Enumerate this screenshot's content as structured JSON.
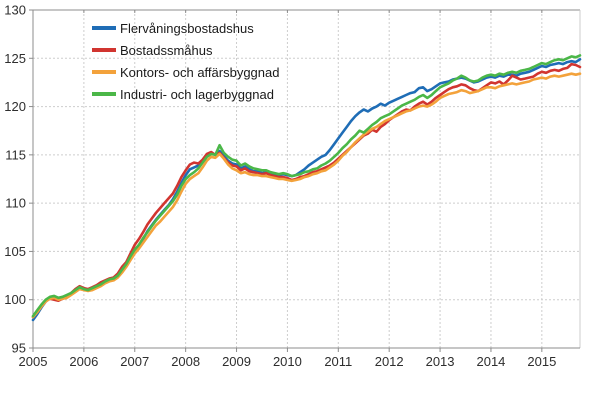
{
  "chart_data": {
    "type": "line",
    "title": "",
    "xlabel": "",
    "ylabel": "",
    "x_unit": "month",
    "x_start": "2005-01",
    "x_end": "2015-10",
    "x_tick_labels": [
      "2005",
      "2006",
      "2007",
      "2008",
      "2009",
      "2010",
      "2011",
      "2012",
      "2013",
      "2014",
      "2015"
    ],
    "y_tick_labels": [
      "95",
      "100",
      "105",
      "110",
      "115",
      "120",
      "125",
      "130"
    ],
    "y_ticks": [
      95,
      100,
      105,
      110,
      115,
      120,
      125,
      130
    ],
    "ylim": [
      95,
      130
    ],
    "grid": true,
    "legend_position": "top-left-inside",
    "axis_color": "#8c8c8c",
    "grid_color": "#cdcdcd",
    "text_color": "#2e2e2e",
    "series": [
      {
        "name": "Flervåningsbostadshus",
        "color": "#1f6db6",
        "values": [
          97.9,
          98.5,
          99.2,
          99.8,
          100.2,
          100.3,
          100.1,
          100.2,
          100.3,
          100.6,
          101.0,
          101.3,
          101.1,
          101.0,
          101.1,
          101.3,
          101.5,
          101.8,
          102.0,
          102.1,
          102.4,
          103.0,
          103.6,
          104.4,
          105.1,
          105.6,
          106.3,
          107.1,
          107.7,
          108.3,
          108.8,
          109.3,
          109.8,
          110.4,
          111.2,
          112.1,
          112.9,
          113.5,
          113.7,
          113.9,
          114.4,
          115.0,
          115.2,
          115.0,
          115.4,
          114.9,
          114.4,
          114.1,
          114.0,
          113.6,
          113.8,
          113.5,
          113.3,
          113.3,
          113.1,
          113.2,
          113.0,
          113.0,
          112.9,
          113.0,
          112.9,
          112.8,
          112.9,
          113.2,
          113.5,
          113.9,
          114.2,
          114.5,
          114.8,
          115.0,
          115.5,
          116.1,
          116.7,
          117.3,
          117.9,
          118.5,
          119.0,
          119.4,
          119.7,
          119.5,
          119.8,
          120.0,
          120.3,
          120.1,
          120.4,
          120.6,
          120.8,
          121.0,
          121.2,
          121.4,
          121.5,
          121.9,
          122.0,
          121.6,
          121.8,
          122.1,
          122.4,
          122.5,
          122.6,
          122.8,
          122.9,
          123.0,
          122.9,
          122.7,
          122.5,
          122.6,
          122.8,
          123.0,
          123.1,
          123.0,
          123.2,
          123.1,
          123.3,
          123.3,
          123.2,
          123.4,
          123.5,
          123.6,
          123.8,
          124.0,
          124.2,
          124.1,
          124.3,
          124.4,
          124.5,
          124.4,
          124.6,
          124.7,
          124.6,
          124.9
        ]
      },
      {
        "name": "Bostadssmåhus",
        "color": "#d13530",
        "values": [
          98.2,
          98.8,
          99.4,
          99.9,
          100.1,
          100.0,
          99.9,
          100.1,
          100.3,
          100.7,
          101.1,
          101.4,
          101.2,
          101.1,
          101.3,
          101.5,
          101.8,
          102.0,
          102.2,
          102.3,
          102.7,
          103.4,
          103.9,
          104.8,
          105.7,
          106.3,
          107.0,
          107.8,
          108.4,
          109.0,
          109.5,
          110.0,
          110.5,
          111.0,
          111.8,
          112.7,
          113.4,
          114.0,
          114.2,
          114.1,
          114.5,
          115.1,
          115.3,
          115.0,
          115.2,
          114.7,
          114.2,
          113.9,
          113.8,
          113.4,
          113.6,
          113.3,
          113.2,
          113.1,
          113.0,
          113.1,
          112.9,
          112.8,
          112.7,
          112.7,
          112.6,
          112.4,
          112.5,
          112.7,
          112.8,
          113.0,
          113.2,
          113.3,
          113.5,
          113.7,
          113.9,
          114.2,
          114.6,
          115.0,
          115.4,
          115.8,
          116.2,
          116.6,
          117.0,
          117.2,
          117.6,
          117.4,
          117.9,
          118.2,
          118.6,
          118.9,
          119.2,
          119.5,
          119.7,
          119.6,
          120.0,
          120.3,
          120.5,
          120.2,
          120.5,
          120.9,
          121.2,
          121.5,
          121.8,
          122.0,
          122.1,
          122.3,
          122.2,
          121.9,
          121.7,
          121.6,
          121.9,
          122.2,
          122.5,
          122.4,
          122.6,
          122.3,
          122.7,
          123.2,
          123.0,
          122.8,
          122.9,
          123.0,
          123.1,
          123.4,
          123.6,
          123.5,
          123.7,
          123.8,
          123.7,
          123.9,
          124.0,
          124.4,
          124.3,
          124.1
        ]
      },
      {
        "name": "Kontors- och affärsbyggnad",
        "color": "#f3a23b",
        "values": [
          98.2,
          98.7,
          99.3,
          99.8,
          100.1,
          100.2,
          100.0,
          100.1,
          100.2,
          100.5,
          100.8,
          101.1,
          101.0,
          100.9,
          101.0,
          101.2,
          101.4,
          101.7,
          101.9,
          102.0,
          102.3,
          102.8,
          103.4,
          104.1,
          104.8,
          105.3,
          105.9,
          106.5,
          107.1,
          107.7,
          108.1,
          108.6,
          109.1,
          109.6,
          110.3,
          111.2,
          112.0,
          112.5,
          112.8,
          113.1,
          113.7,
          114.4,
          114.8,
          114.7,
          115.1,
          114.6,
          114.0,
          113.6,
          113.4,
          113.1,
          113.2,
          113.0,
          112.9,
          112.9,
          112.8,
          112.8,
          112.7,
          112.6,
          112.5,
          112.5,
          112.4,
          112.3,
          112.4,
          112.5,
          112.7,
          112.8,
          113.0,
          113.1,
          113.3,
          113.4,
          113.7,
          114.0,
          114.4,
          114.9,
          115.3,
          115.8,
          116.3,
          116.7,
          117.1,
          117.4,
          117.7,
          117.9,
          118.2,
          118.5,
          118.7,
          118.9,
          119.1,
          119.3,
          119.5,
          119.6,
          119.8,
          120.0,
          120.1,
          120.0,
          120.2,
          120.5,
          120.9,
          121.1,
          121.3,
          121.4,
          121.5,
          121.7,
          121.6,
          121.4,
          121.5,
          121.6,
          121.8,
          122.0,
          122.0,
          121.9,
          122.1,
          122.2,
          122.3,
          122.4,
          122.3,
          122.4,
          122.5,
          122.6,
          122.8,
          122.9,
          123.0,
          122.9,
          123.1,
          123.2,
          123.1,
          123.2,
          123.3,
          123.4,
          123.3,
          123.4
        ]
      },
      {
        "name": "Industri- och lagerbyggnad",
        "color": "#4bb748",
        "values": [
          98.3,
          98.9,
          99.5,
          100.0,
          100.3,
          100.4,
          100.2,
          100.3,
          100.5,
          100.7,
          101.0,
          101.3,
          101.1,
          101.0,
          101.2,
          101.4,
          101.6,
          101.9,
          102.1,
          102.2,
          102.5,
          103.1,
          103.7,
          104.5,
          105.2,
          105.7,
          106.4,
          107.0,
          107.6,
          108.2,
          108.7,
          109.2,
          109.7,
          110.2,
          110.9,
          111.8,
          112.5,
          112.9,
          113.2,
          113.6,
          114.2,
          114.8,
          115.1,
          115.0,
          116.0,
          115.2,
          114.8,
          114.5,
          114.4,
          113.9,
          114.1,
          113.8,
          113.6,
          113.5,
          113.4,
          113.4,
          113.2,
          113.1,
          113.0,
          113.1,
          113.0,
          112.8,
          112.9,
          113.0,
          113.2,
          113.3,
          113.5,
          113.6,
          113.9,
          114.1,
          114.4,
          114.8,
          115.2,
          115.7,
          116.1,
          116.6,
          117.0,
          117.5,
          117.3,
          117.7,
          118.1,
          118.4,
          118.8,
          119.0,
          119.2,
          119.5,
          119.8,
          120.1,
          120.3,
          120.5,
          120.7,
          121.0,
          121.2,
          120.9,
          121.2,
          121.6,
          122.0,
          122.2,
          122.4,
          122.7,
          122.9,
          123.2,
          123.0,
          122.7,
          122.6,
          122.7,
          123.0,
          123.2,
          123.3,
          123.2,
          123.4,
          123.3,
          123.5,
          123.6,
          123.5,
          123.7,
          123.8,
          123.9,
          124.1,
          124.3,
          124.5,
          124.4,
          124.6,
          124.8,
          124.9,
          124.8,
          125.0,
          125.2,
          125.1,
          125.3
        ]
      }
    ]
  }
}
